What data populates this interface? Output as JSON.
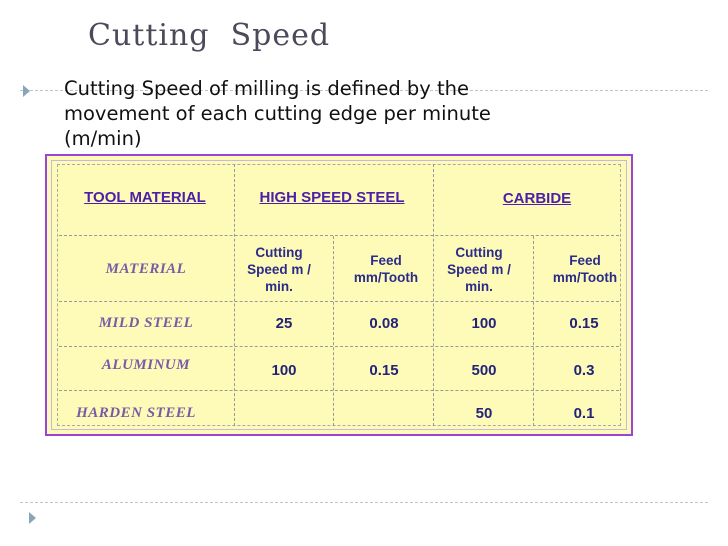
{
  "slide": {
    "title": "Cutting  Speed",
    "bullet": "Cutting Speed of milling is defined by the movement of each cutting edge per minute (m/min)"
  },
  "table": {
    "header": {
      "tool_material": "TOOL MATERIAL",
      "high_speed_steel": "HIGH SPEED STEEL",
      "carbide": "CARBIDE"
    },
    "subheader": {
      "material": "MATERIAL",
      "hss_cutting_speed": "Cutting Speed m / min.",
      "hss_feed": "Feed mm/Tooth",
      "carbide_cutting_speed": "Cutting Speed m / min.",
      "carbide_feed": "Feed mm/Tooth"
    },
    "rows": [
      {
        "material": "MILD STEEL",
        "hss_speed": "25",
        "hss_feed": "0.08",
        "carbide_speed": "100",
        "carbide_feed": "0.15"
      },
      {
        "material": "ALUMINUM",
        "hss_speed": "100",
        "hss_feed": "0.15",
        "carbide_speed": "500",
        "carbide_feed": "0.3"
      },
      {
        "material": "HARDEN STEEL",
        "hss_speed": "",
        "hss_feed": "",
        "carbide_speed": "50",
        "carbide_feed": "0.1"
      }
    ]
  },
  "colors": {
    "table_fill": "#fdfbb7",
    "table_border": "#9a45d6",
    "header_text": "#4b1fa8",
    "value_text": "#23237a",
    "material_text": "#7a5aa8",
    "bullet_marker": "#8aa6b6"
  },
  "icons": {
    "bullet": "triangle-right-icon",
    "footer": "triangle-right-icon"
  }
}
